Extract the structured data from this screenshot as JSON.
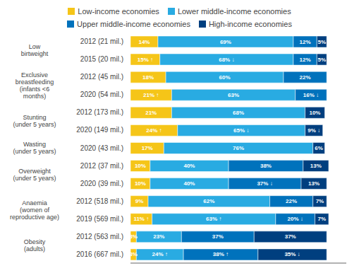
{
  "chart_data": {
    "type": "bar",
    "orientation": "horizontal",
    "stacked": true,
    "data_labels": true,
    "legend": "top",
    "grid": false,
    "tick_labels": "y",
    "xlim": [
      0,
      110
    ],
    "categories": [
      "2012 (21 mil.)",
      "2015 (20 mil.)",
      "2012 (45 mil.)",
      "2020 (54 mil.)",
      "2012 (173 mil.)",
      "2020 (149 mil.)",
      "2020 (43 mil.)",
      "2012 (37 mil.)",
      "2020 (39 mil.)",
      "2012 (518 mil.)",
      "2019 (569 mil.)",
      "2012 (563 mil.)",
      "2016 (667 mil.)"
    ],
    "groups": [
      {
        "label": "Low\nbirtweight",
        "categories": [
          "2012 (21 mil.)",
          "2015 (20 mil.)"
        ]
      },
      {
        "label": "Exclusive\nbreastfeeding\n(infants <6\nmonths)",
        "categories": [
          "2012 (45 mil.)",
          "2020 (54 mil.)"
        ]
      },
      {
        "label": "Stunting\n(under 5 years)",
        "categories": [
          "2012 (173 mil.)",
          "2020 (149 mil.)"
        ]
      },
      {
        "label": "Wasting\n(under 5 years)",
        "categories": [
          "2020 (43 mil.)"
        ]
      },
      {
        "label": "Overweight\n(under 5 years)",
        "categories": [
          "2012 (37 mil.)",
          "2020 (39 mil.)"
        ]
      },
      {
        "label": "Anaemia\n(women of\nreproductive age)",
        "categories": [
          "2012 (518 mil.)",
          "2019 (569 mil.)"
        ]
      },
      {
        "label": "Obesity\n(adults)",
        "categories": [
          "2012 (563 mil.)",
          "2016 (667 mil.)"
        ]
      }
    ],
    "series": [
      {
        "name": "Low-income economies",
        "color": "#F5C518",
        "values": [
          14,
          15,
          18,
          21,
          21,
          24,
          17,
          10,
          10,
          9,
          11,
          3,
          3
        ],
        "value_labels": [
          "14%",
          "15% ↑",
          "18%",
          "21% ↑",
          "21%",
          "24% ↑",
          "17%",
          "10%",
          "10%",
          "9%",
          "11% ↑",
          "3%",
          "3%"
        ]
      },
      {
        "name": "Lower middle-income economies",
        "color": "#29ABE2",
        "values": [
          69,
          68,
          60,
          63,
          68,
          65,
          76,
          40,
          40,
          62,
          63,
          23,
          24
        ],
        "value_labels": [
          "69%",
          "68% ↓",
          "60%",
          "63%",
          "68%",
          "65% ↓",
          "76%",
          "40%",
          "40%",
          "62%",
          "63% ↑",
          "23%",
          "24% ↑"
        ]
      },
      {
        "name": "Upper middle-income economies",
        "color": "#0072BC",
        "values": [
          12,
          12,
          22,
          16,
          0,
          0,
          0,
          38,
          37,
          22,
          20,
          37,
          38
        ],
        "value_labels": [
          "12%",
          "12%",
          "22%",
          "16% ↓",
          null,
          null,
          null,
          "38%",
          "37% ↓",
          "22%",
          "20% ↓",
          "37%",
          "38% ↑"
        ]
      },
      {
        "name": "High-income economies",
        "color": "#003F7F",
        "values": [
          5,
          5,
          0,
          0,
          10,
          9,
          6,
          13,
          13,
          7,
          7,
          37,
          35
        ],
        "value_labels": [
          "5%",
          "5%",
          null,
          null,
          "10%",
          "9% ↓",
          "6%",
          "13%",
          "13%",
          "7%",
          "7%",
          "37%",
          "35% ↓"
        ]
      }
    ]
  }
}
